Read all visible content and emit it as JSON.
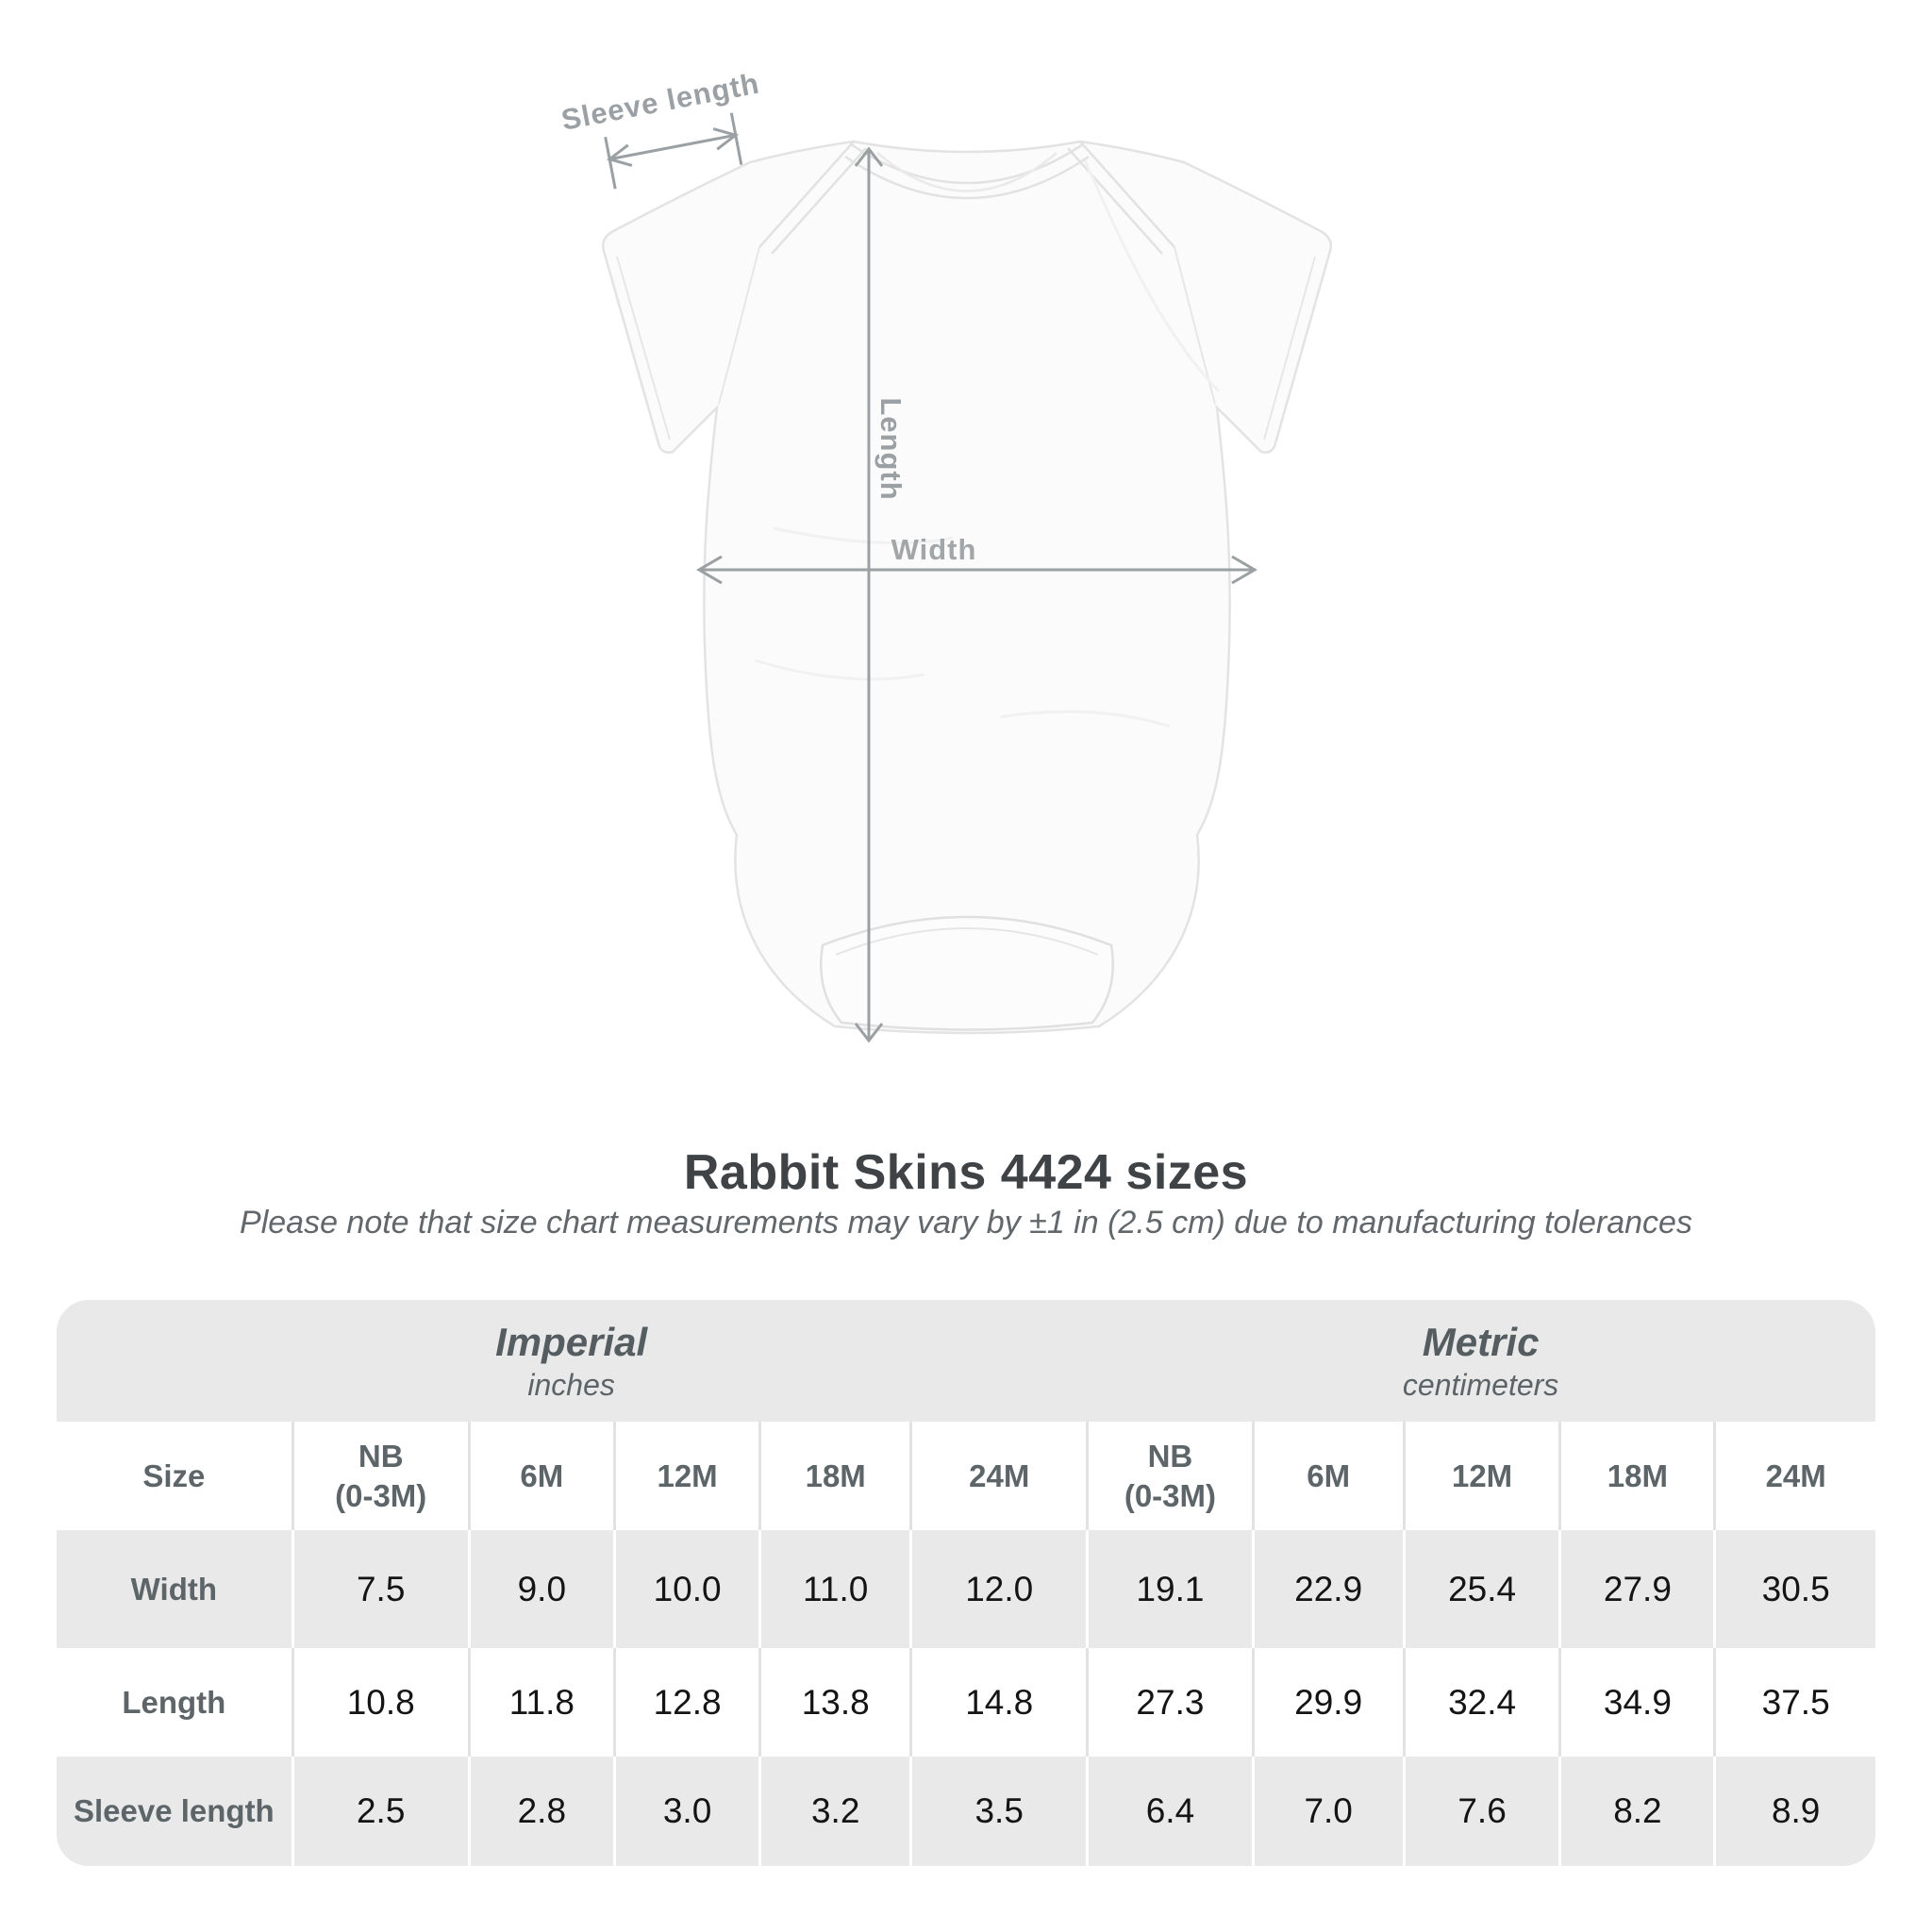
{
  "page": {
    "background": "#ffffff"
  },
  "diagram": {
    "garment": "infant-bodysuit",
    "sleeve_length_label": "Sleeve length",
    "length_label": "Length",
    "width_label": "Width",
    "annotation_color": "#9aa0a3"
  },
  "heading": {
    "title": "Rabbit Skins 4424 sizes",
    "subtitle": "Please note that size chart measurements may vary by ±1 in (2.5 cm) due to manufacturing tolerances"
  },
  "size_table": {
    "size_header": "Size",
    "unit_groups": [
      {
        "name": "Imperial",
        "unit": "inches"
      },
      {
        "name": "Metric",
        "unit": "centimeters"
      }
    ],
    "columns": [
      {
        "line1": "NB",
        "line2": "(0-3M)"
      },
      {
        "line1": "6M",
        "line2": ""
      },
      {
        "line1": "12M",
        "line2": ""
      },
      {
        "line1": "18M",
        "line2": ""
      },
      {
        "line1": "24M",
        "line2": ""
      },
      {
        "line1": "NB",
        "line2": "(0-3M)"
      },
      {
        "line1": "6M",
        "line2": ""
      },
      {
        "line1": "12M",
        "line2": ""
      },
      {
        "line1": "18M",
        "line2": ""
      },
      {
        "line1": "24M",
        "line2": ""
      }
    ],
    "rows": [
      {
        "label": "Width",
        "values": [
          "7.5",
          "9.0",
          "10.0",
          "11.0",
          "12.0",
          "19.1",
          "22.9",
          "25.4",
          "27.9",
          "30.5"
        ]
      },
      {
        "label": "Length",
        "values": [
          "10.8",
          "11.8",
          "12.8",
          "13.8",
          "14.8",
          "27.3",
          "29.9",
          "32.4",
          "34.9",
          "37.5"
        ]
      },
      {
        "label": "Sleeve length",
        "values": [
          "2.5",
          "2.8",
          "3.0",
          "3.2",
          "3.5",
          "6.4",
          "7.0",
          "7.6",
          "8.2",
          "8.9"
        ]
      }
    ],
    "colors": {
      "band_gray": "#e9e9e9",
      "header_text": "#5d6569",
      "value_text": "#141414",
      "separator_on_white": "#e2e2e2",
      "separator_on_gray": "#ffffff",
      "title_text": "#3f4346",
      "subtitle_text": "#61676b"
    }
  }
}
